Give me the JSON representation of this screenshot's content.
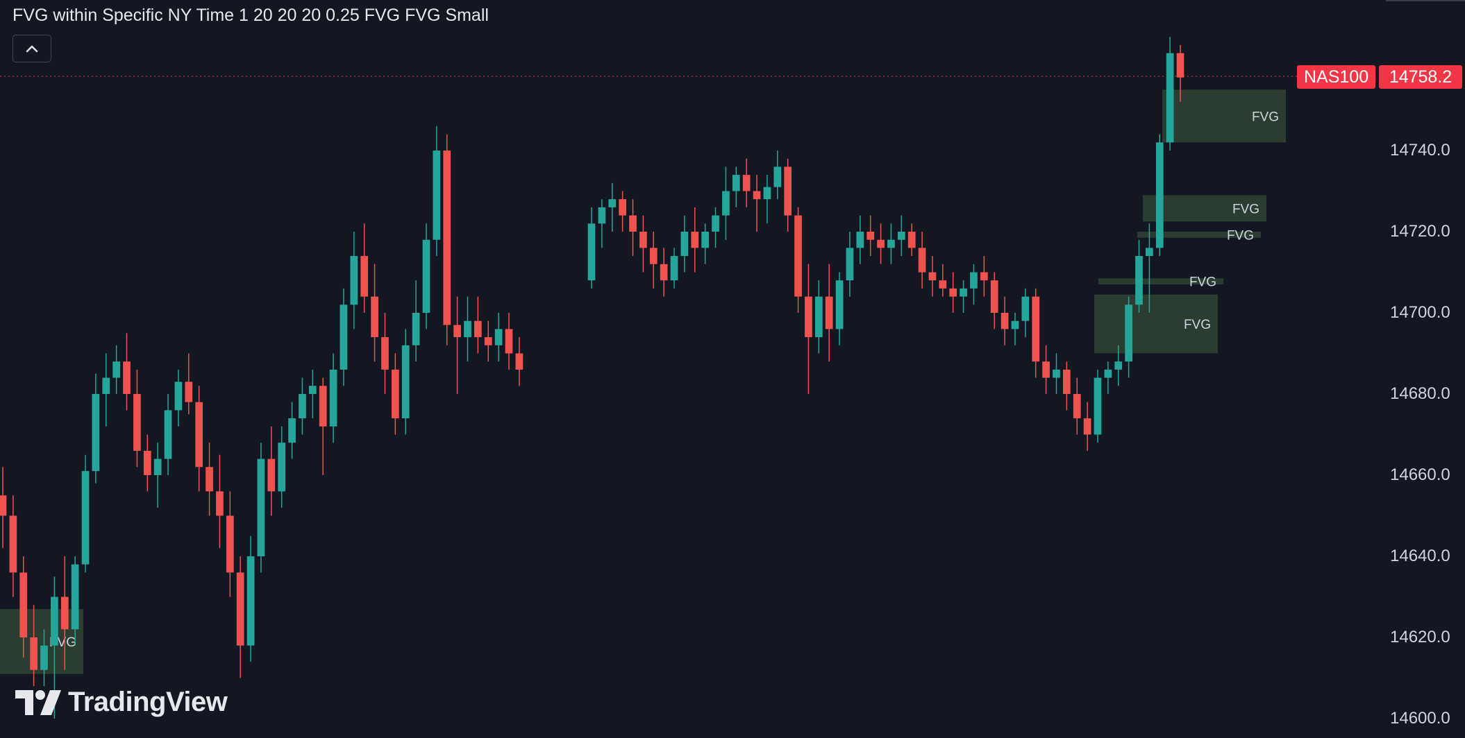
{
  "indicator": {
    "title": "FVG within Specific NY Time 1 20 20 20 0.25 FVG FVG Small"
  },
  "symbol": {
    "name": "NAS100",
    "last_price": "14758.2"
  },
  "price_axis": {
    "ticks": [
      "14740.0",
      "14720.0",
      "14700.0",
      "14680.0",
      "14660.0",
      "14640.0",
      "14620.0",
      "14600.0"
    ]
  },
  "watermark": {
    "text": "TradingView"
  },
  "colors": {
    "background": "#131722",
    "bull": "#26a69a",
    "bear": "#ef5350",
    "fvg_fill": "#2b3f31",
    "price_line": "#f23645"
  },
  "fvg_zones": [
    {
      "label": "FVG",
      "top": 14627.0,
      "bottom": 14611.0
    },
    {
      "label": "FVG",
      "top": 14755.0,
      "bottom": 14742.0
    },
    {
      "label": "FVG",
      "top": 14729.0,
      "bottom": 14722.5
    },
    {
      "label": "FVG",
      "top": 14720.0,
      "bottom": 14718.5
    },
    {
      "label": "FVG",
      "top": 14708.5,
      "bottom": 14707.0
    },
    {
      "label": "FVG",
      "top": 14704.5,
      "bottom": 14690.0
    }
  ],
  "chart_data": {
    "type": "candlestick",
    "symbol": "NAS100",
    "last_price": 14758.2,
    "ylim": [
      14600,
      14770
    ],
    "ohlc": [
      [
        14655,
        14662,
        14642,
        14650
      ],
      [
        14650,
        14655,
        14630,
        14636
      ],
      [
        14636,
        14640,
        14615,
        14620
      ],
      [
        14620,
        14628,
        14608,
        14612
      ],
      [
        14612,
        14622,
        14608,
        14618
      ],
      [
        14618,
        14635,
        14600,
        14630
      ],
      [
        14630,
        14640,
        14612,
        14622
      ],
      [
        14622,
        14640,
        14618,
        14638
      ],
      [
        14638,
        14665,
        14636,
        14661
      ],
      [
        14661,
        14685,
        14658,
        14680
      ],
      [
        14680,
        14690,
        14672,
        14684
      ],
      [
        14684,
        14692,
        14680,
        14688
      ],
      [
        14688,
        14695,
        14676,
        14680
      ],
      [
        14680,
        14686,
        14662,
        14666
      ],
      [
        14666,
        14670,
        14656,
        14660
      ],
      [
        14660,
        14668,
        14652,
        14664
      ],
      [
        14664,
        14680,
        14660,
        14676
      ],
      [
        14676,
        14686,
        14672,
        14683
      ],
      [
        14683,
        14690,
        14675,
        14678
      ],
      [
        14678,
        14682,
        14656,
        14662
      ],
      [
        14662,
        14668,
        14650,
        14656
      ],
      [
        14656,
        14665,
        14642,
        14650
      ],
      [
        14650,
        14656,
        14630,
        14636
      ],
      [
        14636,
        14640,
        14610,
        14618
      ],
      [
        14618,
        14645,
        14614,
        14640
      ],
      [
        14640,
        14668,
        14636,
        14664
      ],
      [
        14664,
        14672,
        14650,
        14656
      ],
      [
        14656,
        14672,
        14652,
        14668
      ],
      [
        14668,
        14678,
        14664,
        14674
      ],
      [
        14674,
        14684,
        14670,
        14680
      ],
      [
        14680,
        14686,
        14674,
        14682
      ],
      [
        14682,
        14684,
        14660,
        14672
      ],
      [
        14672,
        14690,
        14668,
        14686
      ],
      [
        14686,
        14706,
        14682,
        14702
      ],
      [
        14702,
        14720,
        14696,
        14714
      ],
      [
        14714,
        14722,
        14700,
        14704
      ],
      [
        14704,
        14712,
        14688,
        14694
      ],
      [
        14694,
        14700,
        14680,
        14686
      ],
      [
        14686,
        14690,
        14670,
        14674
      ],
      [
        14674,
        14696,
        14670,
        14692
      ],
      [
        14692,
        14708,
        14688,
        14700
      ],
      [
        14700,
        14722,
        14696,
        14718
      ],
      [
        14718,
        14746,
        14714,
        14740
      ],
      [
        14740,
        14744,
        14692,
        14697
      ],
      [
        14697,
        14704,
        14680,
        14694
      ],
      [
        14694,
        14704,
        14688,
        14698
      ],
      [
        14698,
        14704,
        14690,
        14694
      ],
      [
        14694,
        14698,
        14688,
        14692
      ],
      [
        14692,
        14700,
        14688,
        14696
      ],
      [
        14696,
        14700,
        14686,
        14690
      ],
      [
        14690,
        14694,
        14682,
        14686
      ],
      [
        14708,
        14726,
        14706,
        14722
      ],
      [
        14722,
        14728,
        14716,
        14726
      ],
      [
        14726,
        14732,
        14720,
        14728
      ],
      [
        14728,
        14730,
        14720,
        14724
      ],
      [
        14724,
        14728,
        14714,
        14720
      ],
      [
        14720,
        14724,
        14710,
        14716
      ],
      [
        14716,
        14720,
        14706,
        14712
      ],
      [
        14712,
        14716,
        14704,
        14708
      ],
      [
        14708,
        14716,
        14706,
        14714
      ],
      [
        14714,
        14724,
        14710,
        14720
      ],
      [
        14720,
        14726,
        14710,
        14716
      ],
      [
        14716,
        14722,
        14712,
        14720
      ],
      [
        14720,
        14726,
        14716,
        14724
      ],
      [
        14724,
        14736,
        14718,
        14730
      ],
      [
        14730,
        14736,
        14726,
        14734
      ],
      [
        14734,
        14738,
        14726,
        14730
      ],
      [
        14730,
        14734,
        14720,
        14728
      ],
      [
        14728,
        14734,
        14722,
        14731
      ],
      [
        14731,
        14740,
        14728,
        14736
      ],
      [
        14736,
        14738,
        14720,
        14724
      ],
      [
        14724,
        14726,
        14700,
        14704
      ],
      [
        14704,
        14712,
        14680,
        14694
      ],
      [
        14694,
        14708,
        14690,
        14704
      ],
      [
        14704,
        14712,
        14688,
        14696
      ],
      [
        14696,
        14710,
        14692,
        14708
      ],
      [
        14708,
        14720,
        14704,
        14716
      ],
      [
        14716,
        14724,
        14712,
        14720
      ],
      [
        14720,
        14724,
        14714,
        14718
      ],
      [
        14718,
        14722,
        14712,
        14716
      ],
      [
        14716,
        14722,
        14712,
        14718
      ],
      [
        14718,
        14724,
        14714,
        14720
      ],
      [
        14720,
        14722,
        14714,
        14716
      ],
      [
        14716,
        14720,
        14706,
        14710
      ],
      [
        14710,
        14714,
        14704,
        14708
      ],
      [
        14708,
        14712,
        14704,
        14706
      ],
      [
        14706,
        14710,
        14700,
        14704
      ],
      [
        14704,
        14708,
        14700,
        14706
      ],
      [
        14706,
        14712,
        14702,
        14710
      ],
      [
        14710,
        14714,
        14704,
        14708
      ],
      [
        14708,
        14710,
        14696,
        14700
      ],
      [
        14700,
        14704,
        14692,
        14696
      ],
      [
        14696,
        14700,
        14692,
        14698
      ],
      [
        14698,
        14706,
        14694,
        14704
      ],
      [
        14704,
        14706,
        14684,
        14688
      ],
      [
        14688,
        14692,
        14680,
        14684
      ],
      [
        14684,
        14690,
        14680,
        14686
      ],
      [
        14686,
        14688,
        14676,
        14680
      ],
      [
        14680,
        14684,
        14670,
        14674
      ],
      [
        14674,
        14678,
        14666,
        14670
      ],
      [
        14670,
        14686,
        14668,
        14684
      ],
      [
        14684,
        14688,
        14680,
        14686
      ],
      [
        14686,
        14692,
        14682,
        14688
      ],
      [
        14688,
        14704,
        14684,
        14702
      ],
      [
        14702,
        14718,
        14700,
        14714
      ],
      [
        14714,
        14722,
        14700,
        14716
      ],
      [
        14716,
        14744,
        14714,
        14742
      ],
      [
        14742,
        14768,
        14740,
        14764
      ],
      [
        14764,
        14766,
        14752,
        14758
      ]
    ]
  }
}
